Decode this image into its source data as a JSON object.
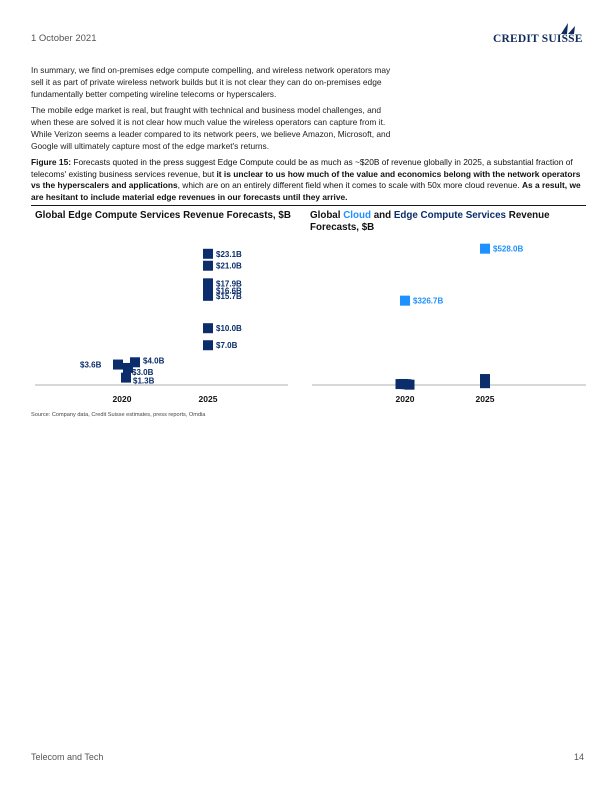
{
  "header": {
    "date": "1 October 2021",
    "logo_text": "CREDIT SUISSE"
  },
  "body": {
    "paragraph1": "In summary, we find on-premises edge compute compelling, and wireless network operators may sell it as part of private wireless network builds but it is not clear they can do on-premises edge fundamentally better competing wireline telecoms or hyperscalers.",
    "paragraph2": "The mobile edge market is real, but fraught with technical and business model challenges, and when these are solved it is not clear how much value the wireless operators can capture from it. While Verizon seems a leader compared to its network peers, we believe Amazon, Microsoft, and Google will ultimately capture most of the edge market's returns."
  },
  "figure": {
    "label": "Figure 15:",
    "text1": " Forecasts quoted in the press suggest Edge Compute could be as much as ~$20B of revenue globally in 2025, a substantial fraction of telecoms' existing business services revenue, but ",
    "bold1": "it is unclear to us how much of the value and economics belong with the network operators vs the hyperscalers and applications",
    "text2": ", which are on an entirely different field when it comes to scale with 50x more cloud revenue. ",
    "bold2": "As a result, we are hesitant to include material edge revenues in our forecasts until they arrive."
  },
  "chart_titles": {
    "left": "Global Edge Compute Services Revenue Forecasts, $B",
    "right_pre": "Global ",
    "right_cloud": "Cloud",
    "right_mid": " and ",
    "right_edge": "Edge Compute Services",
    "right_post": " Revenue Forecasts, $B"
  },
  "chart_data": [
    {
      "type": "scatter",
      "title": "Global Edge Compute Services Revenue Forecasts, $B",
      "categories": [
        "2020",
        "2025"
      ],
      "color": "#0b2d6b",
      "series": [
        {
          "points": [
            {
              "x": "2020",
              "y": 3.6,
              "label": "$3.6B"
            },
            {
              "x": "2020",
              "y": 4.0,
              "label": "$4.0B"
            },
            {
              "x": "2020",
              "y": 3.0,
              "label": "$3.0B"
            },
            {
              "x": "2020",
              "y": 1.3,
              "label": "$1.3B"
            },
            {
              "x": "2025",
              "y": 23.1,
              "label": "$23.1B"
            },
            {
              "x": "2025",
              "y": 21.0,
              "label": "$21.0B"
            },
            {
              "x": "2025",
              "y": 17.9,
              "label": "$17.9B"
            },
            {
              "x": "2025",
              "y": 16.6,
              "label": "$16.6B"
            },
            {
              "x": "2025",
              "y": 15.7,
              "label": "$15.7B"
            },
            {
              "x": "2025",
              "y": 10.0,
              "label": "$10.0B"
            },
            {
              "x": "2025",
              "y": 7.0,
              "label": "$7.0B"
            }
          ]
        }
      ]
    },
    {
      "type": "scatter",
      "title": "Global Cloud and Edge Compute Services Revenue Forecasts, $B",
      "categories": [
        "2020",
        "2025"
      ],
      "colors": {
        "cloud": "#1e90ff",
        "edge": "#0b2d6b"
      },
      "series": [
        {
          "kind": "cloud",
          "points": [
            {
              "x": "2020",
              "y": 326.7,
              "label": "$326.7B"
            },
            {
              "x": "2025",
              "y": 528.0,
              "label": "$528.0B"
            }
          ]
        },
        {
          "kind": "edge",
          "points": [
            {
              "x": "2020",
              "y": 3.6
            },
            {
              "x": "2020",
              "y": 4.0
            },
            {
              "x": "2020",
              "y": 3.0
            },
            {
              "x": "2020",
              "y": 1.3
            },
            {
              "x": "2025",
              "y": 23.1
            },
            {
              "x": "2025",
              "y": 21.0
            },
            {
              "x": "2025",
              "y": 17.9
            },
            {
              "x": "2025",
              "y": 16.6
            },
            {
              "x": "2025",
              "y": 15.7
            },
            {
              "x": "2025",
              "y": 10.0
            },
            {
              "x": "2025",
              "y": 7.0
            }
          ]
        }
      ]
    }
  ],
  "source": "Source: Company data, Credit Suisse estimates, press reports, Omdia",
  "footer": {
    "section": "Telecom and Tech",
    "page": "14"
  }
}
